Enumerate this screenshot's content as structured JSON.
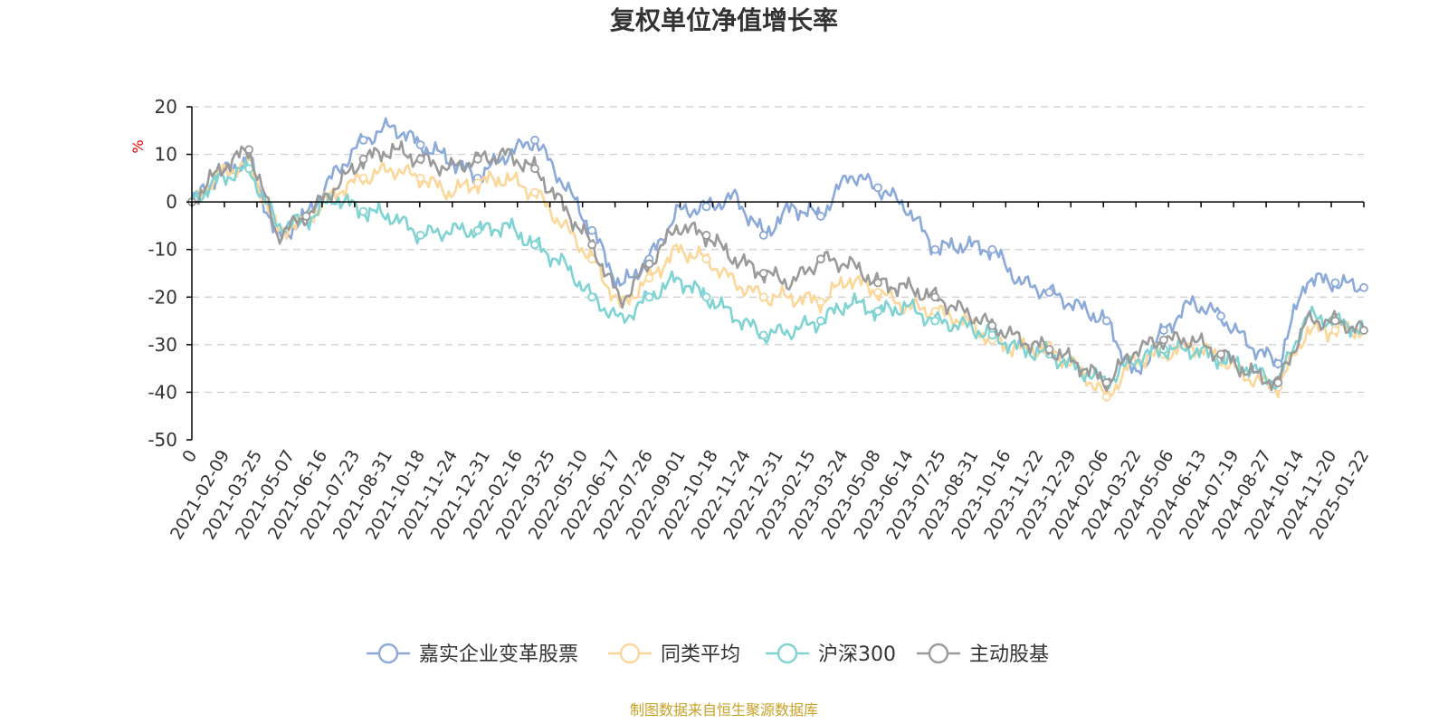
{
  "colors": {
    "series": [
      "#8ba9d9",
      "#fcd79a",
      "#7fd3d3",
      "#9a9a9a"
    ],
    "source": "#c9a227",
    "unit": "#e60000"
  },
  "chart_data": {
    "type": "line",
    "title": "复权单位净值增长率",
    "ylabel": "%",
    "ylim": [
      -50,
      20
    ],
    "yticks": [
      "20",
      "10",
      "0",
      "-10",
      "-20",
      "-30",
      "-40",
      "-50"
    ],
    "ytick_values": [
      20,
      10,
      0,
      -10,
      -20,
      -30,
      -40,
      -50
    ],
    "xlabels": [
      "0",
      "2021-02-09",
      "2021-03-25",
      "2021-05-07",
      "2021-06-16",
      "2021-07-23",
      "2021-08-31",
      "2021-10-18",
      "2021-11-24",
      "2021-12-31",
      "2022-02-16",
      "2022-03-25",
      "2022-05-10",
      "2022-06-17",
      "2022-07-26",
      "2022-09-01",
      "2022-10-18",
      "2022-11-24",
      "2022-12-31",
      "2023-02-15",
      "2023-03-24",
      "2023-05-08",
      "2023-06-14",
      "2023-07-25",
      "2023-08-31",
      "2023-10-16",
      "2023-11-22",
      "2023-12-29",
      "2024-02-06",
      "2024-03-22",
      "2024-05-06",
      "2024-06-13",
      "2024-07-19",
      "2024-08-27",
      "2024-10-14",
      "2024-11-20",
      "2025-01-22"
    ],
    "series": [
      {
        "name": "嘉实企业变革股票",
        "values": [
          0,
          6,
          9,
          -8,
          -3,
          6,
          13,
          16,
          12,
          9,
          5,
          10,
          13,
          4,
          -6,
          -18,
          -12,
          -2,
          -1,
          1,
          -7,
          -1,
          -3,
          6,
          3,
          -1,
          -10,
          -9,
          -10,
          -17,
          -19,
          -22,
          -25,
          -37,
          -27,
          -21,
          -24,
          -30,
          -34,
          -16,
          -17,
          -18
        ]
      },
      {
        "name": "同类平均",
        "values": [
          0,
          6,
          8,
          -6,
          -4,
          2,
          5,
          7,
          5,
          2,
          4,
          5,
          2,
          -5,
          -12,
          -22,
          -16,
          -10,
          -12,
          -17,
          -20,
          -20,
          -21,
          -16,
          -19,
          -22,
          -23,
          -25,
          -29,
          -31,
          -31,
          -35,
          -41,
          -33,
          -32,
          -30,
          -33,
          -37,
          -39,
          -27,
          -27,
          -27
        ]
      },
      {
        "name": "沪深300",
        "values": [
          0,
          5,
          7,
          -5,
          -4,
          1,
          -2,
          -3,
          -7,
          -6,
          -6,
          -5,
          -9,
          -13,
          -20,
          -25,
          -20,
          -16,
          -20,
          -24,
          -28,
          -27,
          -25,
          -21,
          -23,
          -22,
          -25,
          -26,
          -28,
          -31,
          -32,
          -35,
          -38,
          -33,
          -31,
          -31,
          -33,
          -35,
          -38,
          -24,
          -25,
          -27
        ]
      },
      {
        "name": "主动股基",
        "values": [
          0,
          7,
          11,
          -7,
          -3,
          3,
          9,
          11,
          9,
          7,
          9,
          10,
          7,
          -1,
          -9,
          -21,
          -13,
          -5,
          -7,
          -12,
          -15,
          -17,
          -12,
          -13,
          -17,
          -18,
          -20,
          -23,
          -26,
          -29,
          -31,
          -34,
          -38,
          -31,
          -29,
          -29,
          -32,
          -36,
          -38,
          -25,
          -25,
          -27
        ]
      }
    ]
  },
  "legend": [
    "嘉实企业变革股票",
    "同类平均",
    "沪深300",
    "主动股基"
  ],
  "source_note": "制图数据来自恒生聚源数据库"
}
